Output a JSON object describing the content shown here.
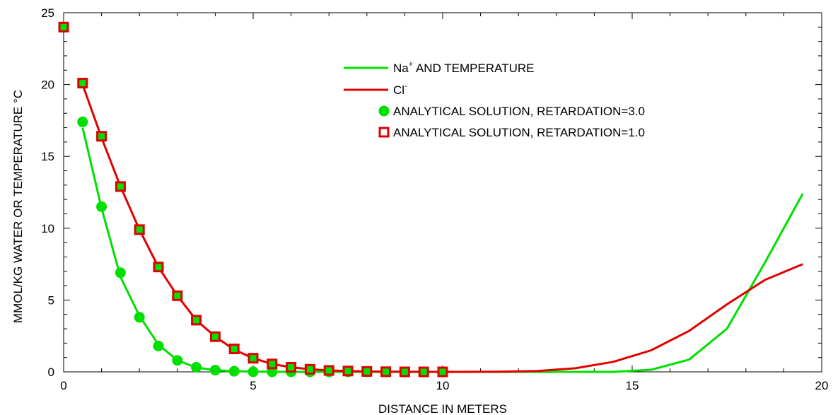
{
  "chart_data": {
    "type": "line",
    "xlabel": "DISTANCE IN METERS",
    "ylabel": "MMOL/KG WATER OR TEMPERATURE °C",
    "xlim": [
      0,
      20
    ],
    "ylim": [
      0,
      25
    ],
    "x_ticks": [
      "0",
      "5",
      "10",
      "15",
      "20"
    ],
    "y_ticks": [
      "0",
      "5",
      "10",
      "15",
      "20",
      "25"
    ],
    "grid": false,
    "legend_position": "top-right",
    "series": [
      {
        "name": "Na+ AND TEMPERATURE",
        "legend_main": "Na",
        "legend_sup": "+",
        "legend_tail": " AND TEMPERATURE",
        "style": "line",
        "color": "#00e000",
        "x": [
          0.5,
          1.0,
          1.5,
          2.0,
          2.5,
          3.0,
          3.5,
          4.0,
          4.5,
          5.0,
          5.5,
          6.0,
          6.5,
          7.0,
          7.5,
          8.0,
          8.5,
          9.0,
          9.5,
          10.0,
          10.5,
          11.5,
          12.5,
          13.5,
          14.5,
          15.5,
          16.5,
          17.5,
          18.5,
          19.5
        ],
        "y": [
          17.0,
          11.4,
          6.6,
          3.9,
          1.9,
          0.8,
          0.3,
          0.12,
          0.05,
          0.02,
          0.01,
          0.0,
          0.0,
          0.0,
          0.0,
          0.0,
          0.0,
          0.0,
          0.0,
          0.0,
          0.0,
          0.0,
          0.0,
          0.0,
          0.0,
          0.15,
          0.85,
          3.0,
          7.6,
          12.4
        ]
      },
      {
        "name": "Cl-",
        "legend_main": "Cl",
        "legend_sup": "-",
        "legend_tail": "",
        "style": "line",
        "color": "#e00000",
        "x": [
          0.5,
          1.0,
          1.5,
          2.0,
          2.5,
          3.0,
          3.5,
          4.0,
          4.5,
          5.0,
          5.5,
          6.0,
          6.5,
          7.0,
          7.5,
          8.0,
          8.5,
          9.0,
          9.5,
          10.0,
          10.5,
          11.5,
          12.5,
          13.5,
          14.5,
          15.5,
          16.5,
          17.5,
          18.5,
          19.5
        ],
        "y": [
          20.0,
          16.3,
          12.9,
          9.9,
          7.3,
          5.3,
          3.6,
          2.45,
          1.55,
          0.95,
          0.55,
          0.32,
          0.18,
          0.1,
          0.06,
          0.03,
          0.02,
          0.01,
          0.0,
          0.0,
          0.0,
          0.01,
          0.06,
          0.25,
          0.7,
          1.5,
          2.85,
          4.7,
          6.4,
          7.5
        ]
      },
      {
        "name": "ANALYTICAL SOLUTION, RETARDATION=3.0",
        "style": "marker-circle",
        "color": "#00e000",
        "x": [
          0.5,
          1.0,
          1.5,
          2.0,
          2.5,
          3.0,
          3.5,
          4.0,
          4.5,
          5.0,
          5.5,
          6.0,
          6.5,
          7.0,
          7.5,
          8.0,
          8.5,
          9.0,
          9.5,
          10.0
        ],
        "y": [
          17.4,
          11.5,
          6.9,
          3.8,
          1.8,
          0.8,
          0.32,
          0.12,
          0.04,
          0.01,
          0.0,
          0.0,
          0.0,
          0.0,
          0.0,
          0.0,
          0.0,
          0.0,
          0.0,
          0.0
        ]
      },
      {
        "name": "ANALYTICAL SOLUTION, RETARDATION=1.0",
        "style": "marker-square",
        "color": "#e00000",
        "fill": "#00e000",
        "x": [
          0.0,
          0.5,
          1.0,
          1.5,
          2.0,
          2.5,
          3.0,
          3.5,
          4.0,
          4.5,
          5.0,
          5.5,
          6.0,
          6.5,
          7.0,
          7.5,
          8.0,
          8.5,
          9.0,
          9.5,
          10.0
        ],
        "y": [
          24.0,
          20.1,
          16.4,
          12.9,
          9.9,
          7.3,
          5.3,
          3.6,
          2.45,
          1.6,
          0.95,
          0.55,
          0.32,
          0.18,
          0.1,
          0.06,
          0.03,
          0.01,
          0.0,
          0.0,
          0.0
        ]
      }
    ]
  }
}
